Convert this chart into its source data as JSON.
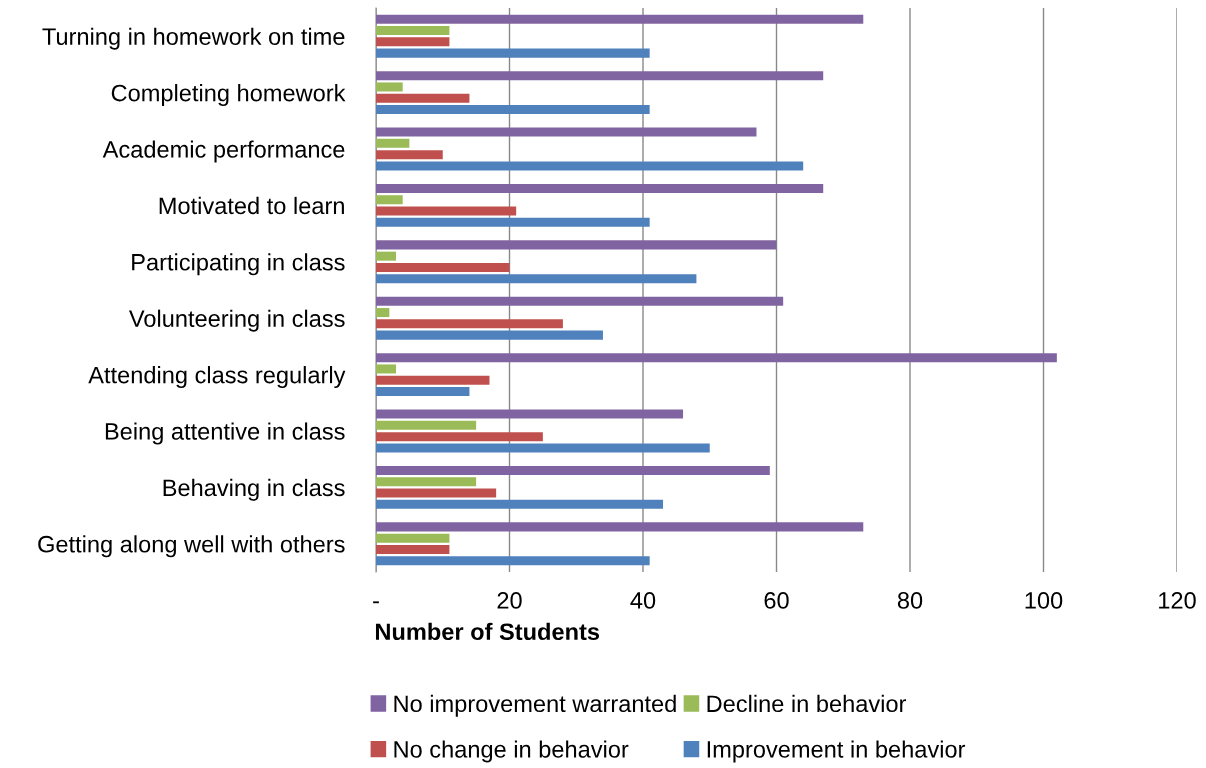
{
  "chart_data": {
    "type": "bar",
    "orientation": "horizontal",
    "xlabel": "Number of Students",
    "categories": [
      "Turning in homework on time",
      "Completing homework",
      "Academic performance",
      "Motivated to learn",
      "Participating in class",
      "Volunteering in class",
      "Attending class regularly",
      "Being attentive in class",
      "Behaving in class",
      "Getting along well with others"
    ],
    "series": [
      {
        "name": "No improvement warranted",
        "color": "#8064a2",
        "values": [
          73,
          67,
          57,
          67,
          60,
          61,
          102,
          46,
          59,
          73
        ]
      },
      {
        "name": "Decline in behavior",
        "color": "#9bbb59",
        "values": [
          11,
          4,
          5,
          4,
          3,
          2,
          3,
          15,
          15,
          11
        ]
      },
      {
        "name": "No change in behavior",
        "color": "#c0504d",
        "values": [
          11,
          14,
          10,
          21,
          20,
          28,
          17,
          25,
          18,
          11
        ]
      },
      {
        "name": "Improvement in behavior",
        "color": "#4f81bd",
        "values": [
          41,
          41,
          64,
          41,
          48,
          34,
          14,
          50,
          43,
          41
        ]
      }
    ],
    "xlim": [
      0,
      120
    ],
    "xticks": [
      {
        "value": 0,
        "label": "-"
      },
      20,
      40,
      60,
      80,
      100,
      120
    ],
    "grid": "x",
    "legend": "bottom"
  }
}
